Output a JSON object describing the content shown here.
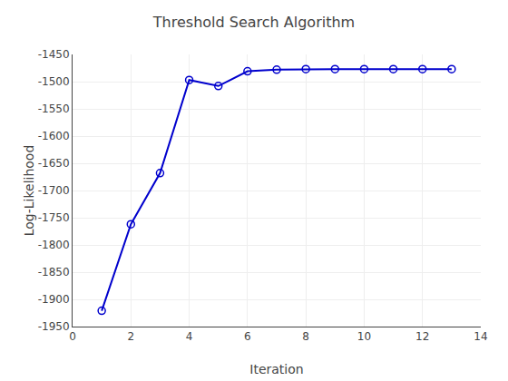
{
  "chart_data": {
    "type": "line",
    "title": "Threshold Search Algorithm",
    "xlabel": "Iteration",
    "ylabel": "Log-Likelihood",
    "x": [
      1,
      2,
      3,
      4,
      5,
      6,
      7,
      8,
      9,
      10,
      11,
      12,
      13
    ],
    "values": [
      -1921,
      -1762,
      -1668,
      -1497,
      -1508,
      -1481,
      -1478,
      -1477,
      -1477,
      -1477,
      -1477,
      -1477,
      -1477
    ],
    "color": "#0000cd",
    "marker": "circle-open",
    "xlim": [
      0,
      14
    ],
    "xticks": [
      0,
      2,
      4,
      6,
      8,
      10,
      12,
      14
    ],
    "ylim": [
      -1950,
      -1450
    ],
    "yticks": [
      -1950,
      -1900,
      -1850,
      -1800,
      -1750,
      -1700,
      -1650,
      -1600,
      -1550,
      -1500,
      -1450
    ],
    "grid": true
  }
}
